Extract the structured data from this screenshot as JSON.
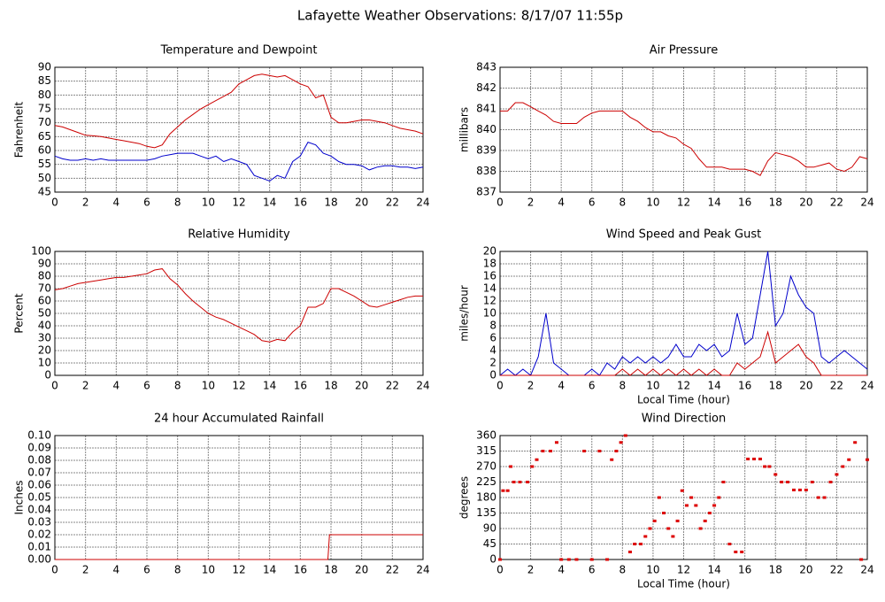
{
  "title": "Lafayette Weather Observations: 8/17/07 11:55p",
  "chart_data": [
    {
      "type": "line",
      "title": "Temperature and Dewpoint",
      "ylabel": "Fahrenheit",
      "grid": true,
      "x": [
        0,
        0.5,
        1,
        1.5,
        2,
        2.5,
        3,
        3.5,
        4,
        4.5,
        5,
        5.5,
        6,
        6.5,
        7,
        7.5,
        8,
        8.5,
        9,
        9.5,
        10,
        10.5,
        11,
        11.5,
        12,
        12.5,
        13,
        13.5,
        14,
        14.5,
        15,
        15.5,
        16,
        16.5,
        17,
        17.5,
        18,
        18.5,
        19,
        19.5,
        20,
        20.5,
        21,
        21.5,
        22,
        22.5,
        23,
        23.5,
        24
      ],
      "series": [
        {
          "color": "#cc0000",
          "values": [
            69,
            68.5,
            67.5,
            66.5,
            65.5,
            65.3,
            65,
            64.5,
            64,
            63.5,
            63,
            62.5,
            61.5,
            61,
            62,
            66,
            68.5,
            71,
            73,
            75,
            76.5,
            78,
            79.5,
            81,
            84,
            85.5,
            87,
            87.5,
            87,
            86.5,
            87,
            85.5,
            84,
            83,
            79,
            80,
            72,
            70,
            70,
            70.5,
            71,
            71,
            70.5,
            70,
            69,
            68,
            67.5,
            67,
            66
          ]
        },
        {
          "color": "#0000cc",
          "values": [
            58,
            57,
            56.5,
            56.5,
            57,
            56.5,
            57,
            56.5,
            56.5,
            56.5,
            56.5,
            56.5,
            56.5,
            57,
            58,
            58.5,
            59,
            59,
            59,
            58,
            57,
            58,
            56,
            57,
            56,
            55,
            51,
            50,
            49,
            51,
            50,
            56,
            58,
            63,
            62,
            59,
            58,
            56,
            55,
            55,
            54.5,
            53,
            54,
            54.5,
            54.5,
            54,
            54,
            53.5,
            54
          ]
        }
      ],
      "xlim": [
        0,
        24
      ],
      "xticks": [
        0,
        2,
        4,
        6,
        8,
        10,
        12,
        14,
        16,
        18,
        20,
        22,
        24
      ],
      "ylim": [
        45,
        90
      ],
      "yticks": [
        45,
        50,
        55,
        60,
        65,
        70,
        75,
        80,
        85,
        90
      ]
    },
    {
      "type": "line",
      "title": "Air Pressure",
      "ylabel": "millibars",
      "grid": true,
      "x": [
        0,
        0.5,
        1,
        1.5,
        2,
        2.5,
        3,
        3.5,
        4,
        4.5,
        5,
        5.5,
        6,
        6.5,
        7,
        7.5,
        8,
        8.5,
        9,
        9.5,
        10,
        10.5,
        11,
        11.5,
        12,
        12.5,
        13,
        13.5,
        14,
        14.5,
        15,
        15.5,
        16,
        16.5,
        17,
        17.5,
        18,
        18.5,
        19,
        19.5,
        20,
        20.5,
        21,
        21.5,
        22,
        22.5,
        23,
        23.5,
        24
      ],
      "series": [
        {
          "color": "#cc0000",
          "values": [
            840.9,
            840.9,
            841.3,
            841.3,
            841.1,
            840.9,
            840.7,
            840.4,
            840.3,
            840.3,
            840.3,
            840.6,
            840.8,
            840.9,
            840.9,
            840.9,
            840.9,
            840.6,
            840.4,
            840.1,
            839.9,
            839.9,
            839.7,
            839.6,
            839.3,
            839.1,
            838.6,
            838.2,
            838.2,
            838.2,
            838.1,
            838.1,
            838.1,
            838.0,
            837.8,
            838.5,
            838.9,
            838.8,
            838.7,
            838.5,
            838.2,
            838.2,
            838.3,
            838.4,
            838.1,
            838.0,
            838.2,
            838.7,
            838.6
          ]
        }
      ],
      "xlim": [
        0,
        24
      ],
      "xticks": [
        0,
        2,
        4,
        6,
        8,
        10,
        12,
        14,
        16,
        18,
        20,
        22,
        24
      ],
      "ylim": [
        837,
        843
      ],
      "yticks": [
        837,
        838,
        839,
        840,
        841,
        842,
        843
      ]
    },
    {
      "type": "line",
      "title": "Relative Humidity",
      "ylabel": "Percent",
      "grid": true,
      "x": [
        0,
        0.5,
        1,
        1.5,
        2,
        2.5,
        3,
        3.5,
        4,
        4.5,
        5,
        5.5,
        6,
        6.5,
        7,
        7.5,
        8,
        8.5,
        9,
        9.5,
        10,
        10.5,
        11,
        11.5,
        12,
        12.5,
        13,
        13.5,
        14,
        14.5,
        15,
        15.5,
        16,
        16.5,
        17,
        17.5,
        18,
        18.5,
        19,
        19.5,
        20,
        20.5,
        21,
        21.5,
        22,
        22.5,
        23,
        23.5,
        24
      ],
      "series": [
        {
          "color": "#cc0000",
          "values": [
            69,
            70,
            72,
            74,
            75,
            76,
            77,
            78,
            79,
            79,
            80,
            81,
            82,
            85,
            86,
            78,
            73,
            66,
            60,
            55,
            50,
            47,
            45,
            42,
            39,
            36,
            33,
            28,
            27,
            29,
            28,
            35,
            40,
            55,
            55,
            58,
            70,
            70,
            67,
            64,
            60,
            56,
            55,
            57,
            59,
            61,
            63,
            64,
            64
          ]
        }
      ],
      "xlim": [
        0,
        24
      ],
      "xticks": [
        0,
        2,
        4,
        6,
        8,
        10,
        12,
        14,
        16,
        18,
        20,
        22,
        24
      ],
      "ylim": [
        0,
        100
      ],
      "yticks": [
        0,
        10,
        20,
        30,
        40,
        50,
        60,
        70,
        80,
        90,
        100
      ]
    },
    {
      "type": "line",
      "title": "Wind Speed and Peak Gust",
      "ylabel": "miles/hour",
      "xlabel": "Local Time (hour)",
      "grid": true,
      "x": [
        0,
        0.5,
        1,
        1.5,
        2,
        2.5,
        3,
        3.5,
        4,
        4.5,
        5,
        5.5,
        6,
        6.5,
        7,
        7.5,
        8,
        8.5,
        9,
        9.5,
        10,
        10.5,
        11,
        11.5,
        12,
        12.5,
        13,
        13.5,
        14,
        14.5,
        15,
        15.5,
        16,
        16.5,
        17,
        17.5,
        18,
        18.5,
        19,
        19.5,
        20,
        20.5,
        21,
        21.5,
        22,
        22.5,
        23,
        23.5,
        24
      ],
      "series": [
        {
          "color": "#0000cc",
          "values": [
            0,
            1,
            0,
            1,
            0,
            3,
            10,
            2,
            1,
            0,
            0,
            0,
            1,
            0,
            2,
            1,
            3,
            2,
            3,
            2,
            3,
            2,
            3,
            5,
            3,
            3,
            5,
            4,
            5,
            3,
            4,
            10,
            5,
            6,
            13,
            20,
            8,
            10,
            16,
            13,
            11,
            10,
            3,
            2,
            3,
            4,
            3,
            2,
            1
          ]
        },
        {
          "color": "#cc0000",
          "values": [
            0,
            0,
            0,
            0,
            0,
            0,
            0,
            0,
            0,
            0,
            0,
            0,
            0,
            0,
            0,
            0,
            1,
            0,
            1,
            0,
            1,
            0,
            1,
            0,
            1,
            0,
            1,
            0,
            1,
            0,
            0,
            2,
            1,
            2,
            3,
            7,
            2,
            3,
            4,
            5,
            3,
            2,
            0,
            0,
            0,
            0,
            0,
            0,
            0
          ]
        }
      ],
      "xlim": [
        0,
        24
      ],
      "xticks": [
        0,
        2,
        4,
        6,
        8,
        10,
        12,
        14,
        16,
        18,
        20,
        22,
        24
      ],
      "ylim": [
        0,
        20
      ],
      "yticks": [
        0,
        2,
        4,
        6,
        8,
        10,
        12,
        14,
        16,
        18,
        20
      ]
    },
    {
      "type": "line",
      "title": "24 hour Accumulated Rainfall",
      "ylabel": "Inches",
      "grid": true,
      "x": [
        0,
        17.8,
        17.9,
        24
      ],
      "series": [
        {
          "color": "#cc0000",
          "values": [
            0,
            0,
            0.02,
            0.02
          ]
        }
      ],
      "xlim": [
        0,
        24
      ],
      "xticks": [
        0,
        2,
        4,
        6,
        8,
        10,
        12,
        14,
        16,
        18,
        20,
        22,
        24
      ],
      "ylim": [
        0,
        0.1
      ],
      "yticks": [
        {
          "value": 0,
          "label": "0.00"
        },
        {
          "value": 0.01,
          "label": "0.01"
        },
        {
          "value": 0.02,
          "label": "0.02"
        },
        {
          "value": 0.03,
          "label": "0.03"
        },
        {
          "value": 0.04,
          "label": "0.04"
        },
        {
          "value": 0.05,
          "label": "0.05"
        },
        {
          "value": 0.06,
          "label": "0.06"
        },
        {
          "value": 0.07,
          "label": "0.07"
        },
        {
          "value": 0.08,
          "label": "0.08"
        },
        {
          "value": 0.09,
          "label": "0.09"
        },
        {
          "value": 0.1,
          "label": "0.10"
        }
      ]
    },
    {
      "type": "scatter",
      "title": "Wind Direction",
      "ylabel": "degrees",
      "xlabel": "Local Time (hour)",
      "grid": true,
      "x": [
        0,
        0.2,
        0.5,
        0.7,
        0.9,
        1.3,
        1.8,
        2.1,
        2.4,
        2.8,
        3.3,
        3.7,
        4,
        4.5,
        5,
        5.5,
        6,
        6.5,
        7,
        7.3,
        7.6,
        7.9,
        8.2,
        8.5,
        8.8,
        9.2,
        9.5,
        9.8,
        10.1,
        10.4,
        10.7,
        11,
        11.3,
        11.6,
        11.9,
        12.2,
        12.5,
        12.8,
        13.1,
        13.4,
        13.7,
        14,
        14.3,
        14.6,
        15,
        15.4,
        15.8,
        16.2,
        16.6,
        17,
        17.3,
        17.6,
        18,
        18.4,
        18.8,
        19.2,
        19.6,
        20,
        20.4,
        20.8,
        21.2,
        21.6,
        22,
        22.4,
        22.8,
        23.2,
        23.6,
        24
      ],
      "series": [
        {
          "color": "#dd0000",
          "values": [
            0,
            200,
            200,
            270,
            225,
            225,
            225,
            270,
            290,
            315,
            315,
            340,
            0,
            0,
            0,
            315,
            0,
            315,
            0,
            290,
            315,
            340,
            360,
            22,
            45,
            45,
            67,
            90,
            112,
            180,
            135,
            90,
            67,
            112,
            200,
            157,
            180,
            157,
            90,
            112,
            135,
            157,
            180,
            225,
            45,
            22,
            22,
            292,
            292,
            292,
            270,
            270,
            247,
            225,
            225,
            202,
            202,
            202,
            225,
            180,
            180,
            225,
            247,
            270,
            290,
            340,
            0,
            290
          ]
        }
      ],
      "xlim": [
        0,
        24
      ],
      "xticks": [
        0,
        2,
        4,
        6,
        8,
        10,
        12,
        14,
        16,
        18,
        20,
        22,
        24
      ],
      "ylim": [
        0,
        360
      ],
      "yticks": [
        0,
        45,
        90,
        135,
        180,
        225,
        270,
        315,
        360
      ]
    }
  ]
}
